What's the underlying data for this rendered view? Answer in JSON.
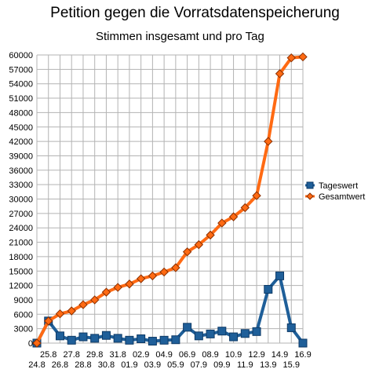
{
  "chart_data": {
    "type": "line",
    "title": "Petition gegen die Vorratsdatenspeicherung",
    "subtitle": "Stimmen insgesamt und pro Tag",
    "xlabel": "",
    "ylabel": "",
    "ylim": [
      0,
      60000
    ],
    "yticks": [
      0,
      3000,
      6000,
      9000,
      12000,
      15000,
      18000,
      21000,
      24000,
      27000,
      30000,
      33000,
      36000,
      39000,
      42000,
      45000,
      48000,
      51000,
      54000,
      57000,
      60000
    ],
    "categories": [
      "24.8",
      "25.8",
      "26.8",
      "27.8",
      "28.8",
      "29.8",
      "30.8",
      "31.8",
      "01.9",
      "02.9",
      "03.9",
      "04.9",
      "05.9",
      "06.9",
      "07.9",
      "08.9",
      "09.9",
      "10.9",
      "11.9",
      "12.9",
      "13.9",
      "14.9",
      "15.9",
      "16.9"
    ],
    "grid": true,
    "legend_position": "right",
    "series": [
      {
        "name": "Tageswert",
        "color": "#1f5f99",
        "marker": "square",
        "values": [
          0,
          4600,
          1500,
          600,
          1300,
          1000,
          1600,
          1000,
          600,
          900,
          400,
          600,
          700,
          3300,
          1500,
          1900,
          2500,
          1300,
          2000,
          2400,
          11200,
          14000,
          3200,
          0
        ]
      },
      {
        "name": "Gesamtwert",
        "color": "#ff6a13",
        "marker": "diamond",
        "values": [
          0,
          4600,
          6100,
          6700,
          8000,
          9000,
          10600,
          11600,
          12300,
          13400,
          14000,
          14800,
          15700,
          19000,
          20500,
          22500,
          25000,
          26300,
          28200,
          30700,
          42000,
          56100,
          59400,
          59600
        ]
      }
    ]
  }
}
